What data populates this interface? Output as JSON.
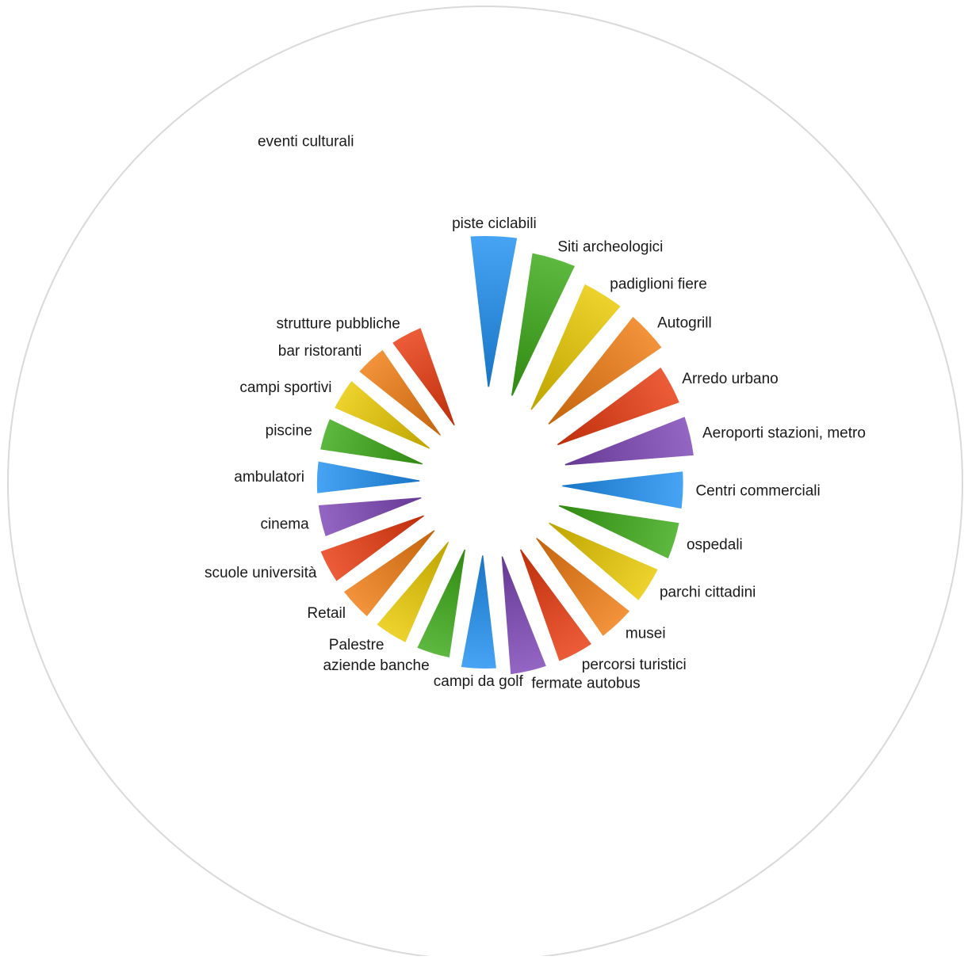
{
  "chart_data": {
    "type": "polar-bar",
    "title": "",
    "categories": [
      "piste ciclabili",
      "Siti archeologici",
      "padiglioni fiere",
      "Autogrill",
      "Arredo urbano",
      "Aeroporti stazioni, metro",
      "Centri commerciali",
      "ospedali",
      "parchi cittadini",
      "musei",
      "percorsi turistici",
      "fermate autobus",
      "campi da golf",
      "aziende banche",
      "Palestre",
      "Retail",
      "scuole università",
      "cinema",
      "ambulatori",
      "piscine",
      "campi sportivi",
      "bar ristoranti",
      "strutture pubbliche",
      "eventi culturali"
    ],
    "values": [
      100,
      95,
      90,
      90,
      85,
      85,
      80,
      80,
      78,
      78,
      78,
      78,
      75,
      72,
      72,
      72,
      72,
      68,
      68,
      68,
      68,
      68,
      68,
      0
    ],
    "colors": [
      "#1f8ff0",
      "#3aa816",
      "#e9c800",
      "#ef7a0f",
      "#e8380c",
      "#7c45b6",
      "#1f8ff0",
      "#3aa816",
      "#e9c800",
      "#ef7a0f",
      "#e8380c",
      "#7c45b6",
      "#1f8ff0",
      "#3aa816",
      "#e9c800",
      "#ef7a0f",
      "#e8380c",
      "#7c45b6",
      "#1f8ff0",
      "#3aa816",
      "#e9c800",
      "#ef7a0f",
      "#e8380c",
      "#7c45b6"
    ],
    "grid": false,
    "legend": "none"
  }
}
